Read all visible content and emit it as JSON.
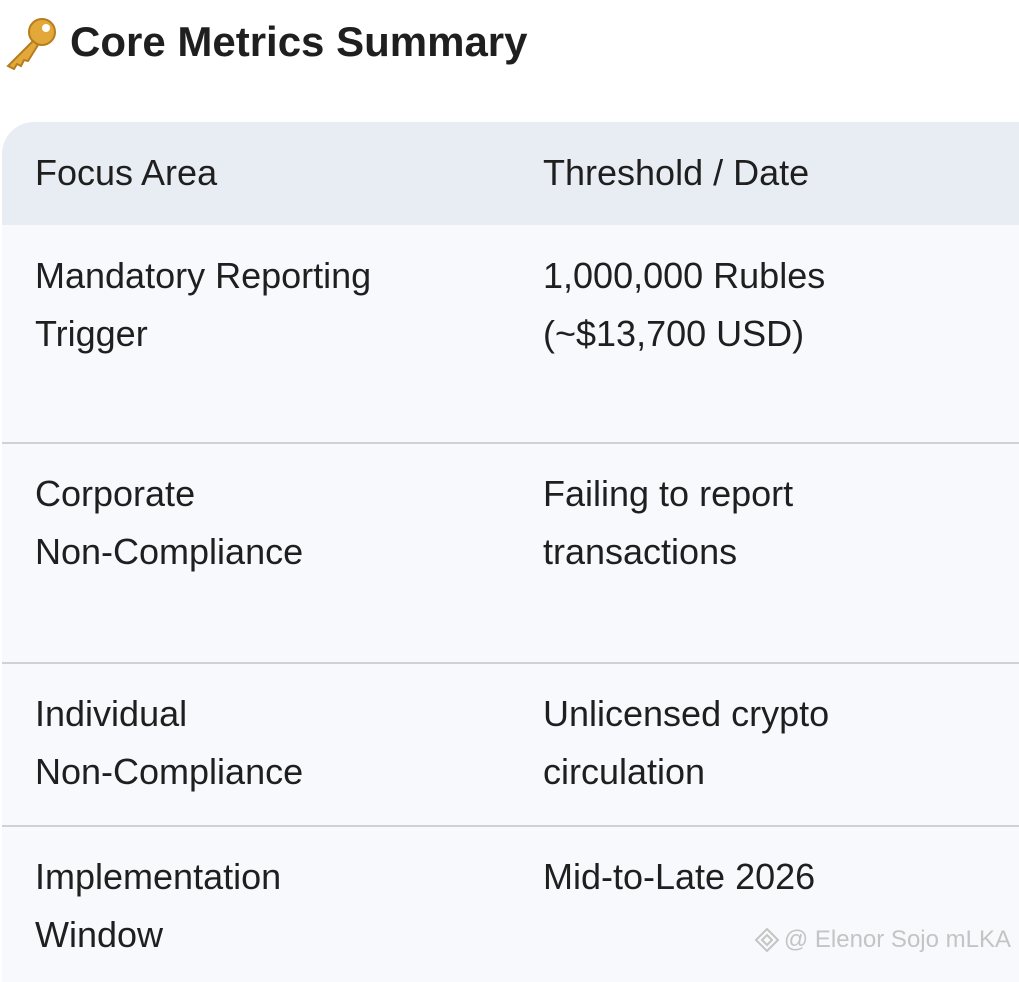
{
  "header": {
    "title": "Core Metrics Summary"
  },
  "table": {
    "columns": [
      "Focus Area",
      "Threshold / Date"
    ],
    "rows": [
      [
        [
          "Mandatory Reporting",
          "Trigger"
        ],
        [
          "1,000,000 Rubles",
          "(~$13,700 USD)"
        ]
      ],
      [
        [
          "Corporate",
          "Non-Compliance"
        ],
        [
          "Failing to report",
          "transactions"
        ]
      ],
      [
        [
          "Individual",
          "Non-Compliance"
        ],
        [
          "Unlicensed crypto",
          "circulation"
        ]
      ],
      [
        [
          "Implementation",
          "Window"
        ],
        [
          "Mid-to-Late 2026"
        ]
      ]
    ]
  },
  "watermark": "@ Elenor Sojo mLKA"
}
